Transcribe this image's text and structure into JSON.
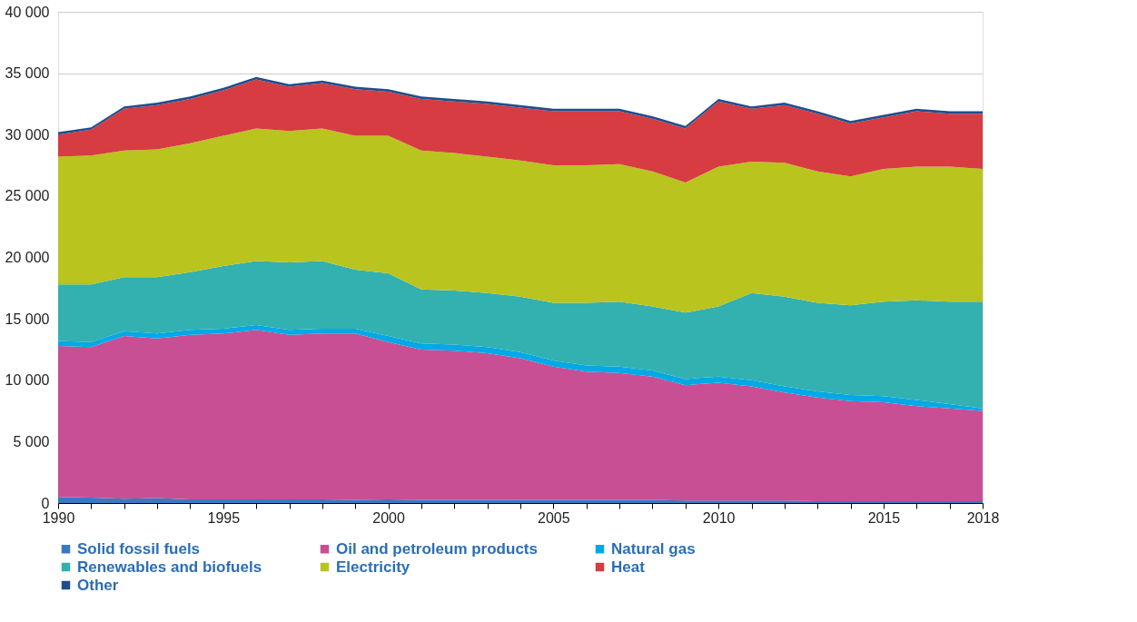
{
  "chart_data": {
    "type": "area",
    "stacked": true,
    "grid": "y",
    "legend": "bottom",
    "x": [
      1990,
      1991,
      1992,
      1993,
      1994,
      1995,
      1996,
      1997,
      1998,
      1999,
      2000,
      2001,
      2002,
      2003,
      2004,
      2005,
      2006,
      2007,
      2008,
      2009,
      2010,
      2011,
      2012,
      2013,
      2014,
      2015,
      2016,
      2017,
      2018
    ],
    "xlim": [
      1990,
      2018
    ],
    "xticks": [
      1990,
      {
        "value": 1991,
        "label": null
      },
      {
        "value": 1992,
        "label": null
      },
      {
        "value": 1993,
        "label": null
      },
      {
        "value": 1994,
        "label": null
      },
      1995,
      {
        "value": 1996,
        "label": null
      },
      {
        "value": 1997,
        "label": null
      },
      {
        "value": 1998,
        "label": null
      },
      {
        "value": 1999,
        "label": null
      },
      2000,
      {
        "value": 2001,
        "label": null
      },
      {
        "value": 2002,
        "label": null
      },
      {
        "value": 2003,
        "label": null
      },
      {
        "value": 2004,
        "label": null
      },
      2005,
      {
        "value": 2006,
        "label": null
      },
      {
        "value": 2007,
        "label": null
      },
      {
        "value": 2008,
        "label": null
      },
      {
        "value": 2009,
        "label": null
      },
      2010,
      {
        "value": 2011,
        "label": null
      },
      {
        "value": 2012,
        "label": null
      },
      {
        "value": 2013,
        "label": null
      },
      {
        "value": 2014,
        "label": null
      },
      2015,
      {
        "value": 2016,
        "label": null
      },
      {
        "value": 2017,
        "label": null
      },
      2018
    ],
    "ylim": [
      0,
      40000
    ],
    "yticks": [
      0,
      {
        "value": 5000,
        "label": "5 000"
      },
      {
        "value": 10000,
        "label": "10 000"
      },
      {
        "value": 15000,
        "label": "15 000"
      },
      {
        "value": 20000,
        "label": "20 000"
      },
      {
        "value": 25000,
        "label": "25 000"
      },
      {
        "value": 30000,
        "label": "30 000"
      },
      {
        "value": 35000,
        "label": "35 000"
      },
      {
        "value": 40000,
        "label": "40 000"
      }
    ],
    "series": [
      {
        "name": "Solid fossil fuels",
        "color": "#3a78c2",
        "values": [
          500,
          450,
          350,
          400,
          300,
          300,
          300,
          300,
          300,
          250,
          300,
          250,
          250,
          250,
          250,
          250,
          250,
          250,
          250,
          200,
          200,
          200,
          200,
          150,
          150,
          150,
          150,
          150,
          150
        ]
      },
      {
        "name": "Oil and petroleum products",
        "color": "#c84f94",
        "values": [
          12300,
          12250,
          13250,
          13000,
          13400,
          13500,
          13800,
          13400,
          13500,
          13550,
          12800,
          12250,
          12150,
          11950,
          11550,
          10850,
          10450,
          10350,
          10050,
          9400,
          9600,
          9300,
          8800,
          8450,
          8150,
          8050,
          7750,
          7550,
          7350
        ]
      },
      {
        "name": "Natural gas",
        "color": "#00a9e6",
        "values": [
          400,
          400,
          400,
          400,
          400,
          400,
          400,
          400,
          400,
          400,
          500,
          500,
          500,
          500,
          500,
          500,
          500,
          500,
          500,
          500,
          500,
          500,
          500,
          500,
          500,
          500,
          500,
          350,
          200
        ]
      },
      {
        "name": "Renewables and biofuels",
        "color": "#33b0b0",
        "values": [
          4600,
          4700,
          4400,
          4600,
          4700,
          5100,
          5200,
          5500,
          5500,
          4800,
          5100,
          4400,
          4400,
          4400,
          4500,
          4700,
          5100,
          5300,
          5200,
          5400,
          5700,
          7100,
          7300,
          7200,
          7300,
          7700,
          8100,
          8350,
          8700
        ]
      },
      {
        "name": "Electricity",
        "color": "#b9c41f",
        "values": [
          10400,
          10500,
          10300,
          10400,
          10500,
          10600,
          10800,
          10700,
          10800,
          10900,
          11200,
          11300,
          11200,
          11100,
          11100,
          11200,
          11200,
          11200,
          11000,
          10600,
          11400,
          10700,
          10900,
          10700,
          10500,
          10800,
          10900,
          11000,
          10800
        ]
      },
      {
        "name": "Heat",
        "color": "#d63c41",
        "values": [
          1800,
          2100,
          3400,
          3600,
          3600,
          3700,
          4000,
          3600,
          3700,
          3800,
          3600,
          4200,
          4200,
          4300,
          4300,
          4400,
          4400,
          4300,
          4300,
          4400,
          5300,
          4300,
          4700,
          4700,
          4300,
          4200,
          4500,
          4300,
          4500
        ]
      },
      {
        "name": "Other",
        "color": "#1f4e8c",
        "values": [
          200,
          200,
          200,
          200,
          200,
          200,
          200,
          200,
          200,
          200,
          200,
          200,
          200,
          200,
          200,
          200,
          200,
          200,
          200,
          200,
          200,
          200,
          200,
          200,
          200,
          200,
          200,
          200,
          200
        ]
      }
    ]
  }
}
